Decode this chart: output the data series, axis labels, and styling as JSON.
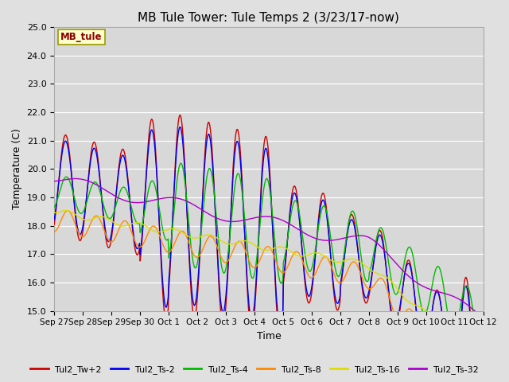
{
  "title": "MB Tule Tower: Tule Temps 2 (3/23/17-now)",
  "xlabel": "Time",
  "ylabel": "Temperature (C)",
  "ylim": [
    15.0,
    25.0
  ],
  "yticks": [
    15.0,
    16.0,
    17.0,
    18.0,
    19.0,
    20.0,
    21.0,
    22.0,
    23.0,
    24.0,
    25.0
  ],
  "facecolor": "#d8d8d8",
  "fig_facecolor": "#e0e0e0",
  "series": [
    {
      "name": "Tul2_Tw+2",
      "color": "#cc0000"
    },
    {
      "name": "Tul2_Ts-2",
      "color": "#0000ee"
    },
    {
      "name": "Tul2_Ts-4",
      "color": "#00bb00"
    },
    {
      "name": "Tul2_Ts-8",
      "color": "#ff8800"
    },
    {
      "name": "Tul2_Ts-16",
      "color": "#dddd00"
    },
    {
      "name": "Tul2_Ts-32",
      "color": "#aa00cc"
    }
  ],
  "xtick_positions": [
    0,
    1,
    2,
    3,
    4,
    5,
    6,
    7,
    8,
    9,
    10,
    11,
    12,
    13,
    14,
    15
  ],
  "xtick_labels": [
    "Sep 27",
    "Sep 28",
    "Sep 29",
    "Sep 30",
    "Oct 1",
    "Oct 2",
    "Oct 3",
    "Oct 4",
    "Oct 5",
    "Oct 6",
    "Oct 7",
    "Oct 8",
    "Oct 9",
    "Oct 10",
    "Oct 11",
    "Oct 12"
  ]
}
